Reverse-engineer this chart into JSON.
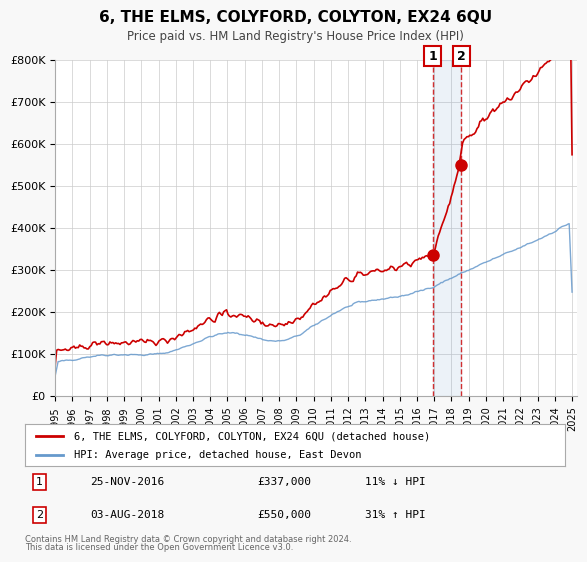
{
  "title": "6, THE ELMS, COLYFORD, COLYTON, EX24 6QU",
  "subtitle": "Price paid vs. HM Land Registry's House Price Index (HPI)",
  "xlabel": "",
  "ylabel": "",
  "ylim": [
    0,
    800000
  ],
  "yticks": [
    0,
    100000,
    200000,
    300000,
    400000,
    500000,
    600000,
    700000,
    800000
  ],
  "ytick_labels": [
    "£0",
    "£100K",
    "£200K",
    "£300K",
    "£400K",
    "£500K",
    "£600K",
    "£700K",
    "£800K"
  ],
  "hpi_color": "#6699cc",
  "price_color": "#cc0000",
  "marker1_date_idx": 21.9,
  "marker2_date_idx": 23.6,
  "sale1_date": "25-NOV-2016",
  "sale1_price": 337000,
  "sale1_pct": "11% ↓ HPI",
  "sale2_date": "03-AUG-2018",
  "sale2_price": 550000,
  "sale2_pct": "31% ↑ HPI",
  "legend_label_price": "6, THE ELMS, COLYFORD, COLYTON, EX24 6QU (detached house)",
  "legend_label_hpi": "HPI: Average price, detached house, East Devon",
  "footer1": "Contains HM Land Registry data © Crown copyright and database right 2024.",
  "footer2": "This data is licensed under the Open Government Licence v3.0.",
  "background_color": "#f8f8f8",
  "plot_bg_color": "#ffffff",
  "grid_color": "#cccccc"
}
